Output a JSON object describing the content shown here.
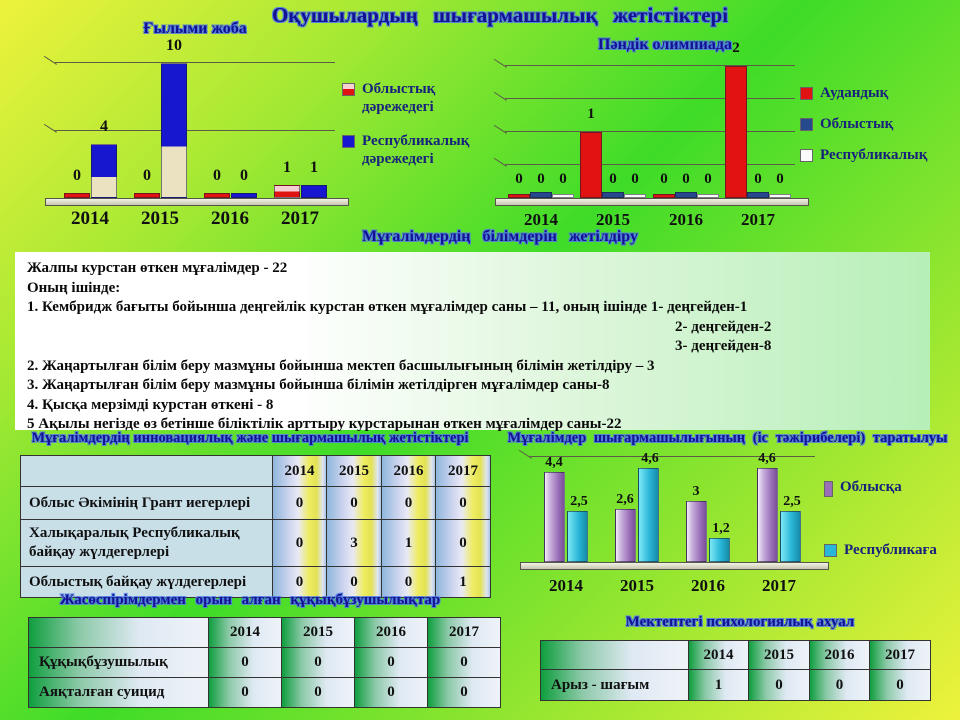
{
  "title": "Оқушылардың шығармашылық жетістіктері",
  "chart_data": [
    {
      "id": "science-project",
      "type": "bar",
      "title": "Ғылыми жоба",
      "categories": [
        "2014",
        "2015",
        "2016",
        "2017"
      ],
      "series": [
        {
          "name": "Облыстық дәрежедегі",
          "color": "#e11212",
          "values": [
            0,
            0,
            0,
            1
          ]
        },
        {
          "name": "Республикалық дәрежедегі",
          "color": "#1717d0",
          "values": [
            4,
            10,
            0,
            1
          ]
        }
      ],
      "ylim": [
        0,
        10
      ],
      "gridlines": [
        5,
        10
      ],
      "legend_position": "right"
    },
    {
      "id": "subject-olympiad",
      "type": "bar",
      "title": "Пәндік олимпиада",
      "categories": [
        "2014",
        "2015",
        "2016",
        "2017"
      ],
      "series": [
        {
          "name": "Аудандық",
          "color": "#e11212",
          "values": [
            0,
            1,
            0,
            2
          ]
        },
        {
          "name": "Облыстық",
          "color": "#26488c",
          "values": [
            0,
            0,
            0,
            0
          ]
        },
        {
          "name": "Республикалық",
          "color": "#fafafa",
          "values": [
            0,
            0,
            0,
            0
          ]
        }
      ],
      "ylim": [
        0,
        2
      ],
      "gridlines": [
        0.5,
        1,
        1.5,
        2
      ],
      "legend_position": "right"
    },
    {
      "id": "teacher-dissemination",
      "type": "bar",
      "title": "Мұғалімдер шығармашылығының (іс тәжірибелері) таратылуы",
      "categories": [
        "2014",
        "2015",
        "2016",
        "2017"
      ],
      "series": [
        {
          "name": "Облысқа",
          "color": "#9a6fb8",
          "values": [
            4.4,
            2.6,
            3,
            4.6
          ],
          "labels": [
            "4,4",
            "2,6",
            "3",
            "4,6"
          ]
        },
        {
          "name": "Республикаға",
          "color": "#2ab6d8",
          "values": [
            2.5,
            4.6,
            1.2,
            2.5
          ],
          "labels": [
            "2,5",
            "4,6",
            "1,2",
            "2,5"
          ]
        }
      ],
      "ylim": [
        0,
        5
      ],
      "gridlines": [
        5
      ],
      "legend_position": "right"
    }
  ],
  "training": {
    "header": "Мұғалімдердің білімдерін жетілдіру",
    "lines": [
      "Жалпы курстан өткен мұғалімдер -  22",
      "Оның ішінде:",
      "1.   Кембридж бағыты бойынша  деңгейлік курстан өткен мұғалімдер саны – 11, оның ішінде  1- деңгейден-1",
      "2- деңгейден-2",
      "3- деңгейден-8",
      "2. Жаңартылған білім беру мазмұны бойынша мектеп басшылығының білімін жетілдіру – 3",
      "3. Жаңартылған білім беру мазмұны бойынша білімін жетілдірген  мұғалімдер саны-8",
      "4. Қысқа мерзімді курстан өткені - 8",
      "5  Ақылы негізде өз бетінше  біліктілік арттыру  курстарынан өткен мұғалімдер саны-22"
    ]
  },
  "tables": [
    {
      "id": "innovation",
      "header": "Мұғалімдердің  инновациялық және шығармашылық  жетістіктері",
      "columns": [
        "2014",
        "2015",
        "2016",
        "2017"
      ],
      "rows": [
        {
          "label": "Облыс Әкімінің Грант иегерлері",
          "values": [
            "0",
            "0",
            "0",
            "0"
          ]
        },
        {
          "label": "Халықаралық Республикалық байқау жүлдегерлері",
          "values": [
            "0",
            "3",
            "1",
            "0"
          ]
        },
        {
          "label": "Облыстық байқау жүлдегерлері",
          "values": [
            "0",
            "0",
            "0",
            "1"
          ]
        }
      ]
    },
    {
      "id": "offenses",
      "header": "Жасөспірімдермен   орын алған құқықбұзушылықтар",
      "columns": [
        "2014",
        "2015",
        "2016",
        "2017"
      ],
      "rows": [
        {
          "label": "Құқықбұзушылық",
          "values": [
            "0",
            "0",
            "0",
            "0"
          ]
        },
        {
          "label": "Аяқталған суицид",
          "values": [
            "0",
            "0",
            "0",
            "0"
          ]
        }
      ]
    },
    {
      "id": "psychological",
      "header": "Мектептегі психологиялық ахуал",
      "columns": [
        "2014",
        "2015",
        "2016",
        "2017"
      ],
      "rows": [
        {
          "label": "Арыз - шағым",
          "values": [
            "1",
            "0",
            "0",
            "0"
          ]
        }
      ]
    }
  ]
}
